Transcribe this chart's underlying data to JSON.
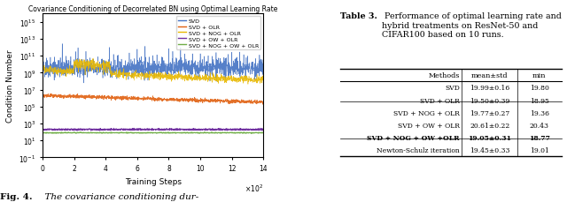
{
  "chart_title": "Covariance Conditioning of Decorrelated BN using Optimal Learning Rate",
  "xlabel": "Training Steps",
  "ylabel": "Condition Number",
  "xlim": [
    0,
    14
  ],
  "x_ticks": [
    0,
    2,
    4,
    6,
    8,
    10,
    12,
    14
  ],
  "x_tick_labels": [
    "0",
    "2",
    "4",
    "6",
    "8",
    "10",
    "12",
    "14"
  ],
  "legend_labels": [
    "SVD",
    "SVD + OLR",
    "SVD + NOG + OLR",
    "SVD + OW + OLR",
    "SVD + NOG + OW + OLR"
  ],
  "line_colors": [
    "#4472C4",
    "#E06010",
    "#E8B800",
    "#7030A0",
    "#70AD47"
  ],
  "table_title_bold": "Table 3.",
  "table_title_rest": " Performance of optimal learning rate and hybrid treatments on ResNet-50 and CIFAR100 based on 10 runs.",
  "table_headers": [
    "Methods",
    "mean±std",
    "min"
  ],
  "table_rows": [
    [
      "SVD",
      "19.99±0.16",
      "19.80"
    ],
    [
      "SVD + OLR",
      "19.50±0.39",
      "18.95"
    ],
    [
      "SVD + NOG + OLR",
      "19.77±0.27",
      "19.36"
    ],
    [
      "SVD + OW + OLR",
      "20.61±0.22",
      "20.43"
    ],
    [
      "SVD + NOG + OW +OLR",
      "19.05±0.31",
      "18.77"
    ],
    [
      "Newton-Schulz iteration",
      "19.45±0.33",
      "19.01"
    ]
  ],
  "bold_row_idx": 4,
  "separator_after": [
    1,
    4
  ],
  "fig_caption_bold": "Fig. 4.",
  "fig_caption_rest": "  The covariance conditioning dur-",
  "bg_color": "#ffffff"
}
